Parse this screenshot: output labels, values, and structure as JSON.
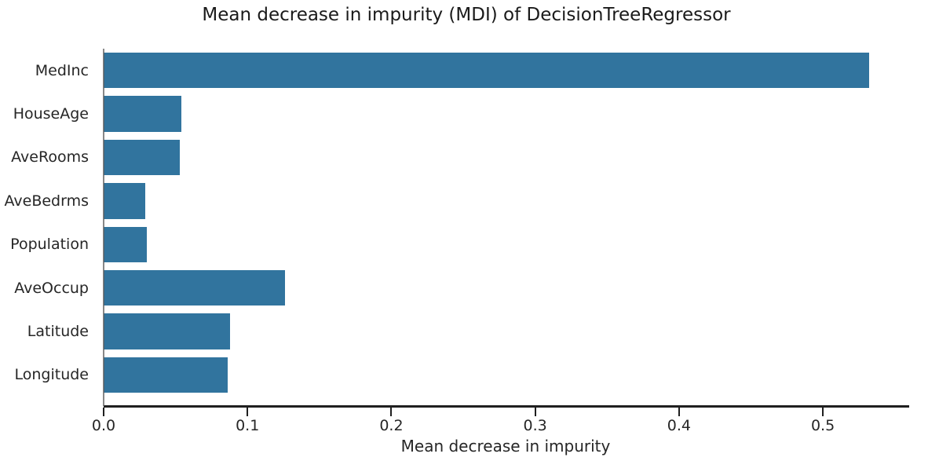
{
  "chart_data": {
    "type": "bar",
    "orientation": "horizontal",
    "title": "Mean decrease in impurity (MDI) of DecisionTreeRegressor",
    "xlabel": "Mean decrease in impurity",
    "ylabel": "",
    "categories": [
      "MedInc",
      "HouseAge",
      "AveRooms",
      "AveBedrms",
      "Population",
      "AveOccup",
      "Latitude",
      "Longitude"
    ],
    "values": [
      0.532,
      0.054,
      0.053,
      0.029,
      0.03,
      0.126,
      0.088,
      0.086
    ],
    "xlim": [
      0.0,
      0.56
    ],
    "xticks": [
      0.0,
      0.1,
      0.2,
      0.3,
      0.4,
      0.5
    ],
    "xtick_labels": [
      "0.0",
      "0.1",
      "0.2",
      "0.3",
      "0.4",
      "0.5"
    ],
    "grid": false,
    "legend": null,
    "colors": {
      "bar": "#31749E",
      "axis": "#1f1f1f",
      "spine_left": "#5a5a5a",
      "text": "#262626",
      "background": "#ffffff"
    }
  }
}
